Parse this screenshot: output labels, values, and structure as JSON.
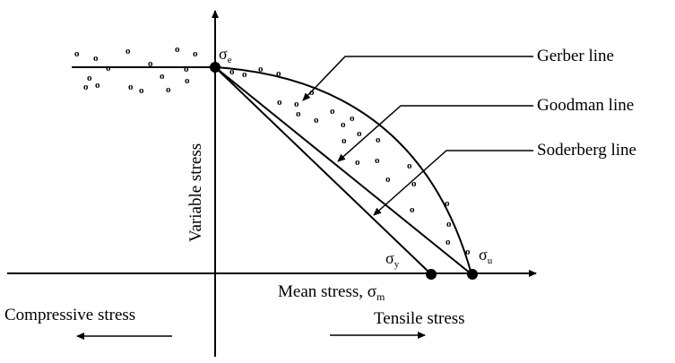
{
  "labels": {
    "gerber": "Gerber line",
    "goodman": "Goodman line",
    "soderberg": "Soderberg line",
    "y_axis": "Variable stress",
    "x_axis_main": "Mean stress, σ",
    "x_axis_sub": "m",
    "compressive": "Compressive stress",
    "tensile": "Tensile stress",
    "sigma": "σ",
    "sub_e": "e",
    "sub_y": "y",
    "sub_u": "u",
    "data_marker": "o"
  },
  "colors": {
    "ink": "#000000",
    "background": "#ffffff"
  }
}
